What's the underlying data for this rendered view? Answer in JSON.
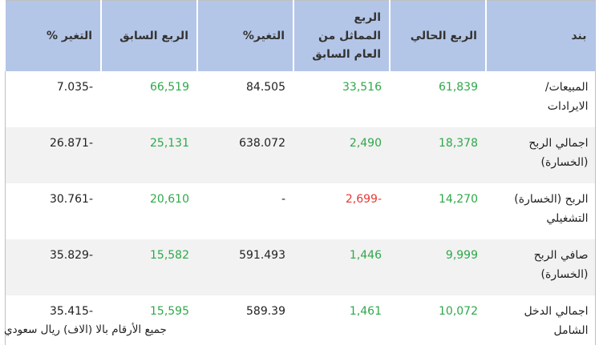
{
  "table": {
    "header": [
      "بند",
      "الربع الحالي",
      "الربع المماثل من العام السابق",
      "التغير%",
      "الربع السابق",
      "التغير %"
    ],
    "rows": [
      [
        "المبيعات/ الايرادات",
        "61,839",
        "33,516",
        "84.505",
        "66,519",
        "7.035-"
      ],
      [
        "اجمالي الربح (الخسارة)",
        "18,378",
        "2,490",
        "638.072",
        "25,131",
        "26.871-"
      ],
      [
        "الربح (الخسارة) التشغيلي",
        "14,270",
        "2,699-",
        "-",
        "20,610",
        "30.761-"
      ],
      [
        "صافي الربح (الخسارة)",
        "9,999",
        "1,446",
        "591.493",
        "15,582",
        "35.829-"
      ],
      [
        "اجمالي الدخل الشامل",
        "10,072",
        "1,461",
        "589.39",
        "15,595",
        "35.415-"
      ]
    ]
  },
  "footer": "جميع الأرقام بالا (الاف) ريال سعودي"
}
